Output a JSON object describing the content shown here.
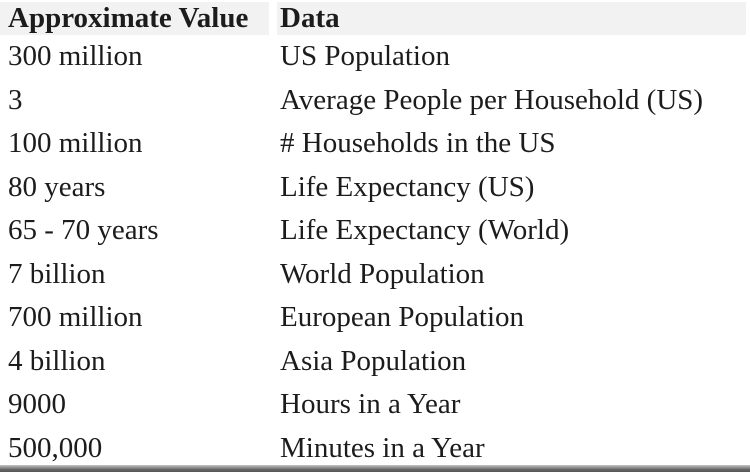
{
  "table": {
    "columns": [
      "Approximate Value",
      "Data"
    ],
    "rows": [
      {
        "value": "300 million",
        "label": "US Population"
      },
      {
        "value": "3",
        "label": "Average People per Household (US)"
      },
      {
        "value": "100 million",
        "label": "# Households in the US"
      },
      {
        "value": "80 years",
        "label": "Life Expectancy (US)"
      },
      {
        "value": "65 - 70 years",
        "label": "Life Expectancy (World)"
      },
      {
        "value": "7 billion",
        "label": "World Population"
      },
      {
        "value": "700 million",
        "label": "European Population"
      },
      {
        "value": "4 billion",
        "label": "Asia Population"
      },
      {
        "value": "9000",
        "label": "Hours in a Year"
      },
      {
        "value": "500,000",
        "label": "Minutes in a Year"
      }
    ]
  },
  "colors": {
    "page-bg": "#ffffff",
    "header-bg": "#f2f2f2",
    "text": "#1c1c1c",
    "cutoff-bar": "#5f5f5f"
  }
}
